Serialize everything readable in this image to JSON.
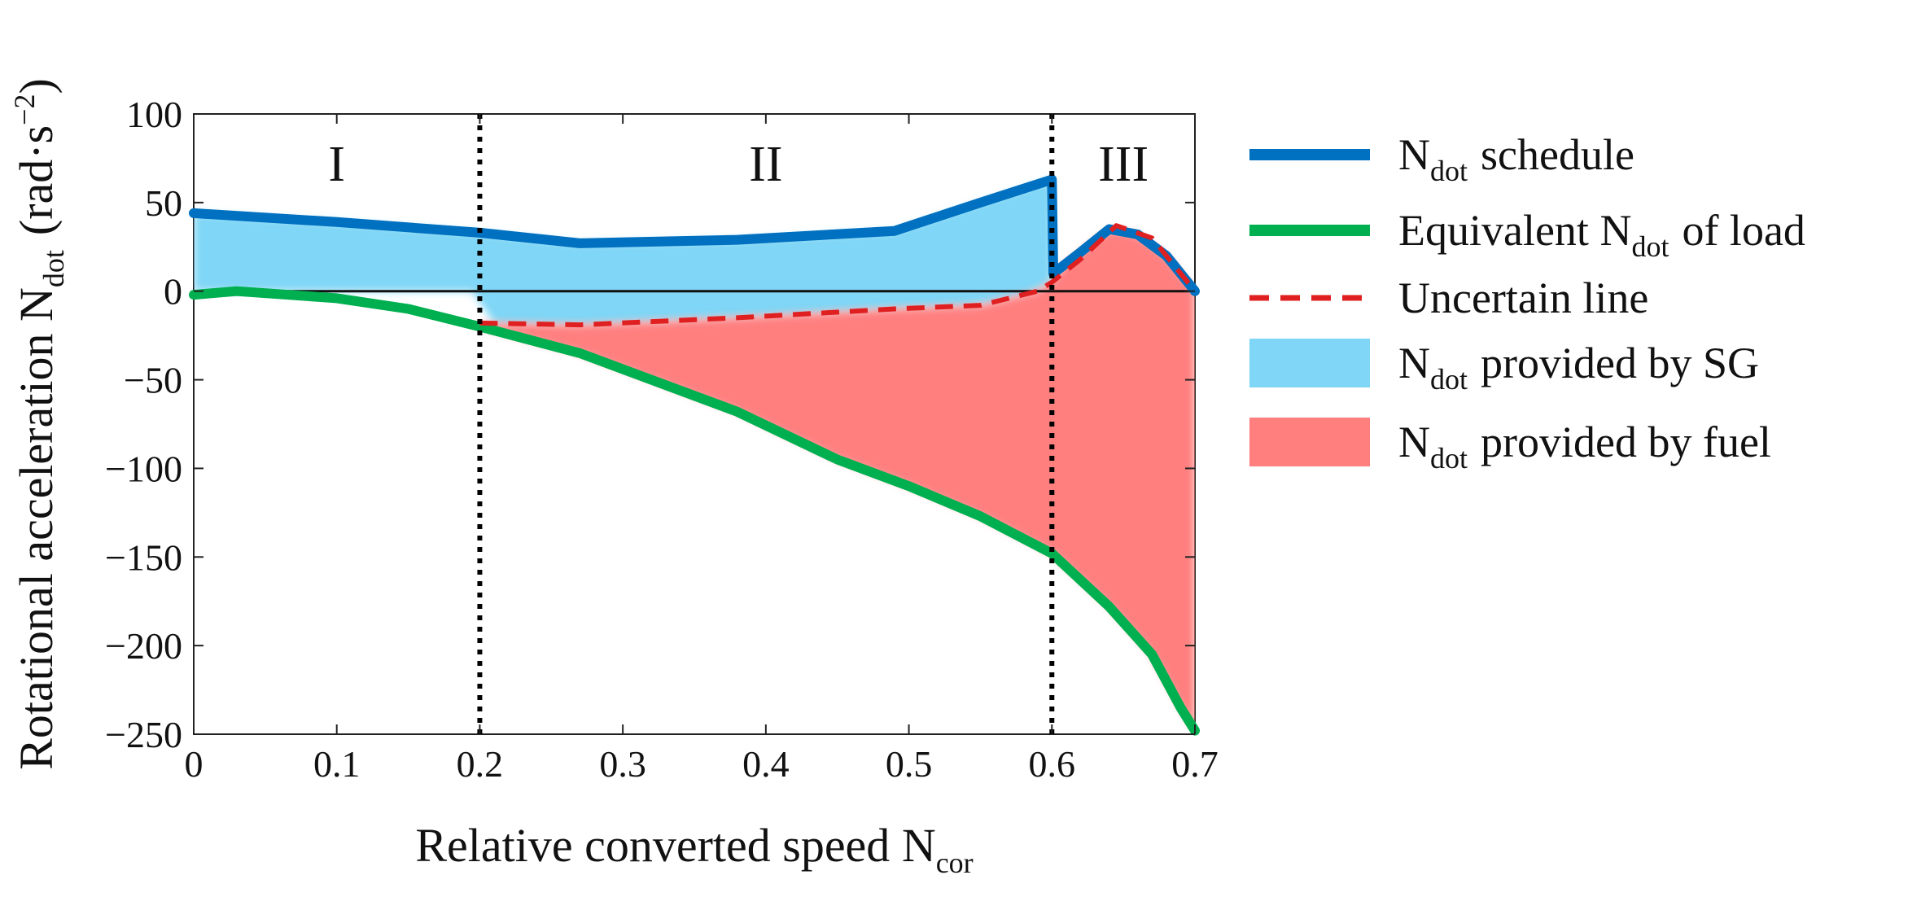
{
  "chart_data": {
    "type": "area",
    "xlabel": "Relative converted speed",
    "xlabel_symbol": "N",
    "xlabel_sub": "cor",
    "ylabel": "Rotational acceleration",
    "ylabel_symbol": "N",
    "ylabel_sub": "dot",
    "ylabel_unit": "(rad·s",
    "ylabel_unit_sup": "−2",
    "ylabel_unit_close": ")",
    "xlim": [
      0,
      0.7
    ],
    "ylim": [
      -250,
      100
    ],
    "xticks": [
      0,
      0.1,
      0.2,
      0.3,
      0.4,
      0.5,
      0.6,
      0.7
    ],
    "xtick_labels": [
      "0",
      "0.1",
      "0.2",
      "0.3",
      "0.4",
      "0.5",
      "0.6",
      "0.7"
    ],
    "yticks": [
      100,
      50,
      0,
      -50,
      -100,
      -150,
      -200,
      -250
    ],
    "ytick_labels": [
      "100",
      "50",
      "0",
      "−50",
      "−100",
      "−150",
      "−200",
      "−250"
    ],
    "grid": false,
    "legend_position": "outside-right",
    "region_dividers": [
      0.2,
      0.6
    ],
    "regions": [
      {
        "label": "I",
        "x": 0.1
      },
      {
        "label": "II",
        "x": 0.4
      },
      {
        "label": "III",
        "x": 0.65
      }
    ],
    "series": [
      {
        "name": "schedule",
        "legend_symbol": "N",
        "legend_sub": "dot",
        "legend_after": "schedule",
        "style": "line",
        "color": "#0070c0",
        "x": [
          0,
          0.1,
          0.2,
          0.27,
          0.38,
          0.49,
          0.55,
          0.6,
          0.601,
          0.62,
          0.64,
          0.66,
          0.68,
          0.7
        ],
        "y": [
          44,
          39,
          33,
          27,
          29,
          34,
          50,
          63,
          10,
          22,
          35,
          32,
          20,
          0
        ]
      },
      {
        "name": "Equivalent of load",
        "legend_before": "Equivalent",
        "legend_symbol": "N",
        "legend_sub": "dot",
        "legend_after": "of load",
        "style": "line",
        "color": "#00b050",
        "x": [
          0,
          0.03,
          0.1,
          0.15,
          0.2,
          0.27,
          0.38,
          0.45,
          0.5,
          0.55,
          0.6,
          0.64,
          0.67,
          0.69,
          0.7
        ],
        "y": [
          -2,
          0,
          -4,
          -10,
          -20,
          -35,
          -68,
          -95,
          -110,
          -127,
          -148,
          -178,
          -205,
          -235,
          -248
        ]
      },
      {
        "name": "Uncertain line",
        "legend_before": "Uncertain line",
        "style": "dashed",
        "color": "#e02020",
        "x": [
          0.2,
          0.27,
          0.38,
          0.49,
          0.55,
          0.59,
          0.6,
          0.62,
          0.645,
          0.67,
          0.7
        ],
        "y": [
          -18,
          -19,
          -15,
          -10,
          -8,
          0,
          5,
          18,
          37,
          30,
          0
        ]
      },
      {
        "name": "provided by SG",
        "legend_symbol": "N",
        "legend_sub": "dot",
        "legend_after": "provided by SG",
        "style": "fill",
        "color": "#7fd6f6"
      },
      {
        "name": "provided by fuel",
        "legend_symbol": "N",
        "legend_sub": "dot",
        "legend_after": "provided by fuel",
        "style": "fill",
        "color": "#ff7f7f"
      }
    ]
  }
}
